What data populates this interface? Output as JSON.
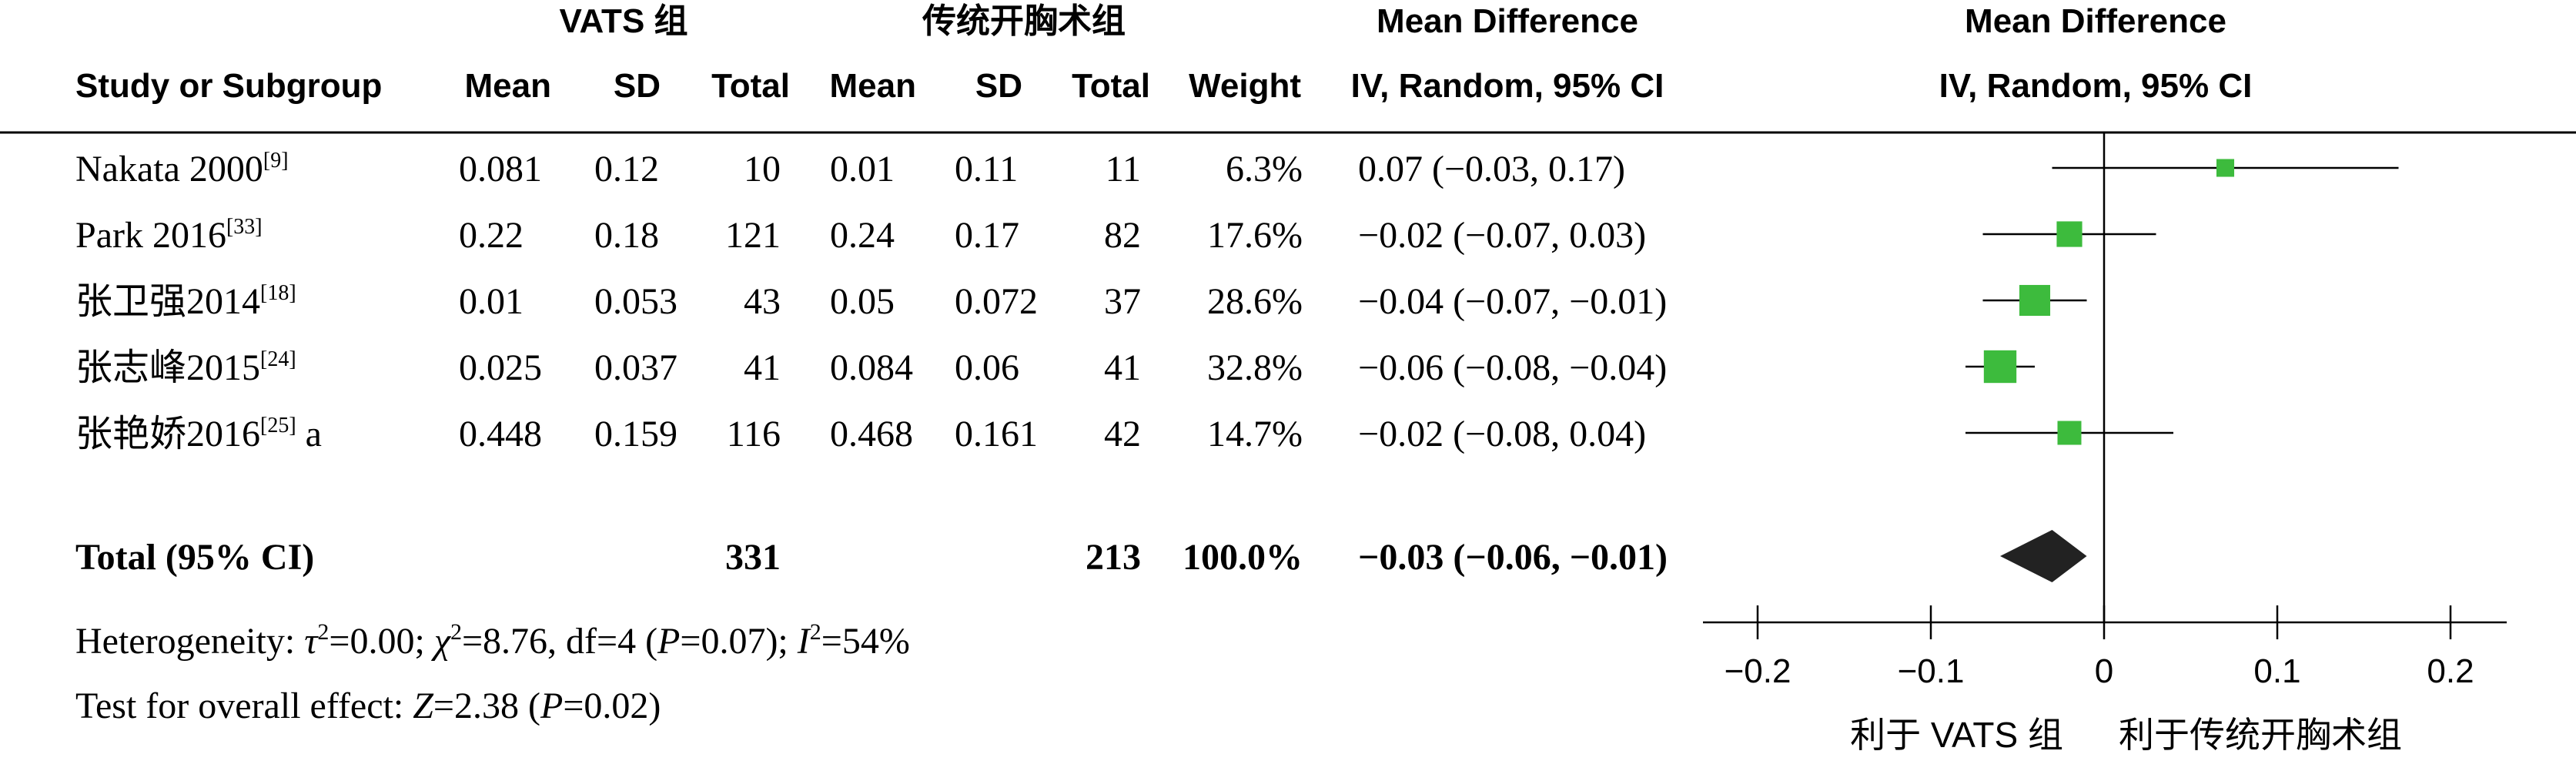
{
  "header": {
    "group1": "VATS 组",
    "group2": "传统开胸术组",
    "md_title": "Mean Difference",
    "md_method": "IV, Random, 95% CI",
    "plot_title": "Mean Difference",
    "plot_method": "IV, Random, 95% CI",
    "col_study": "Study or Subgroup",
    "col_mean1": "Mean",
    "col_sd1": "SD",
    "col_total1": "Total",
    "col_mean2": "Mean",
    "col_sd2": "SD",
    "col_total2": "Total",
    "col_weight": "Weight"
  },
  "footer": {
    "heterogeneity_prefix": "Heterogeneity: ",
    "tau": "τ",
    "tau_val": "=0.00; ",
    "chi": "χ",
    "chi_val": "=8.76, df=4 (",
    "p1": "P",
    "p1_val": "=0.07); ",
    "i": "I",
    "i_val": "=54%",
    "overall_prefix": "Test for overall effect: ",
    "z": "Z",
    "z_val": "=2.38 (",
    "p2": "P",
    "p2_val": "=0.02)",
    "sq": "2"
  },
  "favours": {
    "left": "利于 VATS 组",
    "right": "利于传统开胸术组"
  },
  "colors": {
    "square": "#3dbb3d",
    "diamond": "#222222",
    "line": "#000000"
  },
  "chart_data": {
    "type": "forest",
    "studies": [
      {
        "name": "Nakata 2000",
        "ref": "[9]",
        "suffix": "",
        "mean1": "0.081",
        "sd1": "0.12",
        "total1": "10",
        "mean2": "0.01",
        "sd2": "0.11",
        "total2": "11",
        "weight": "6.3%",
        "ci_text": "0.07 (−0.03, 0.17)",
        "md": 0.07,
        "lo": -0.03,
        "hi": 0.17,
        "w": 6.3
      },
      {
        "name": "Park 2016",
        "ref": "[33]",
        "suffix": "",
        "mean1": "0.22",
        "sd1": "0.18",
        "total1": "121",
        "mean2": "0.24",
        "sd2": "0.17",
        "total2": "82",
        "weight": "17.6%",
        "ci_text": "−0.02 (−0.07, 0.03)",
        "md": -0.02,
        "lo": -0.07,
        "hi": 0.03,
        "w": 17.6
      },
      {
        "name": "张卫强2014",
        "ref": "[18]",
        "suffix": "",
        "mean1": "0.01",
        "sd1": "0.053",
        "total1": "43",
        "mean2": "0.05",
        "sd2": "0.072",
        "total2": "37",
        "weight": "28.6%",
        "ci_text": "−0.04 (−0.07, −0.01)",
        "md": -0.04,
        "lo": -0.07,
        "hi": -0.01,
        "w": 28.6
      },
      {
        "name": "张志峰2015",
        "ref": "[24]",
        "suffix": "",
        "mean1": "0.025",
        "sd1": "0.037",
        "total1": "41",
        "mean2": "0.084",
        "sd2": "0.06",
        "total2": "41",
        "weight": "32.8%",
        "ci_text": "−0.06 (−0.08, −0.04)",
        "md": -0.06,
        "lo": -0.08,
        "hi": -0.04,
        "w": 32.8
      },
      {
        "name": "张艳娇2016",
        "ref": "[25]",
        "suffix": " a",
        "mean1": "0.448",
        "sd1": "0.159",
        "total1": "116",
        "mean2": "0.468",
        "sd2": "0.161",
        "total2": "42",
        "weight": "14.7%",
        "ci_text": "−0.02 (−0.08, 0.04)",
        "md": -0.02,
        "lo": -0.08,
        "hi": 0.04,
        "w": 14.7
      }
    ],
    "total": {
      "label": "Total (95% CI)",
      "total1": "331",
      "total2": "213",
      "weight": "100.0%",
      "ci_text": "−0.03 (−0.06, −0.01)",
      "md": -0.03,
      "lo": -0.06,
      "hi": -0.01
    },
    "xlim": [
      -0.2,
      0.2
    ],
    "ticks": [
      -0.2,
      -0.1,
      0,
      0.1,
      0.2
    ],
    "tick_labels": [
      "−0.2",
      "−0.1",
      "0",
      "0.1",
      "0.2"
    ]
  }
}
